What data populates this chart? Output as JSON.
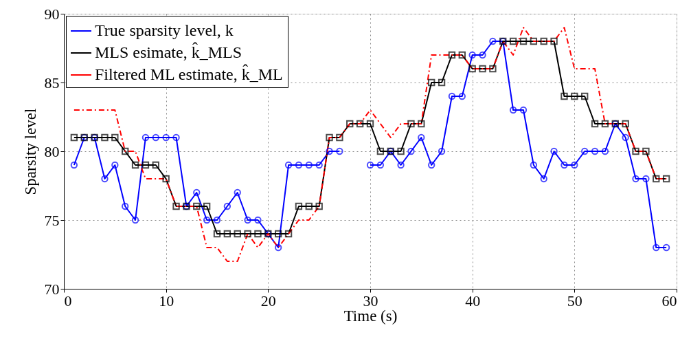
{
  "chart_data": {
    "type": "line",
    "xlabel": "Time (s)",
    "ylabel": "Sparsity level",
    "x": [
      1,
      2,
      3,
      4,
      5,
      6,
      7,
      8,
      9,
      10,
      11,
      12,
      13,
      14,
      15,
      16,
      17,
      18,
      19,
      20,
      21,
      22,
      23,
      24,
      25,
      26,
      27,
      28,
      29,
      30,
      31,
      32,
      33,
      34,
      35,
      36,
      37,
      38,
      39,
      40,
      41,
      42,
      43,
      44,
      45,
      46,
      47,
      48,
      49,
      50,
      51,
      52,
      53,
      54,
      55,
      56,
      57,
      58,
      59
    ],
    "series": [
      {
        "name": "True sparsity level, k",
        "color": "#0000ff",
        "marker": "circle",
        "line_style": "solid",
        "values": [
          79,
          81,
          81,
          78,
          79,
          76,
          75,
          81,
          81,
          81,
          81,
          76,
          77,
          75,
          75,
          76,
          77,
          75,
          75,
          74,
          73,
          79,
          79,
          79,
          79,
          80,
          80,
          null,
          null,
          79,
          79,
          80,
          79,
          80,
          81,
          79,
          80,
          84,
          84,
          87,
          87,
          88,
          88,
          83,
          83,
          79,
          78,
          80,
          79,
          79,
          80,
          80,
          80,
          82,
          81,
          78,
          78,
          73,
          73
        ]
      },
      {
        "name": "MLS esimate, k̂_MLS",
        "color": "#000000",
        "marker": "square",
        "line_style": "solid",
        "values": [
          81,
          81,
          81,
          81,
          81,
          80,
          79,
          79,
          79,
          78,
          76,
          76,
          76,
          76,
          74,
          74,
          74,
          74,
          74,
          74,
          74,
          74,
          76,
          76,
          76,
          81,
          81,
          82,
          82,
          82,
          80,
          80,
          80,
          82,
          82,
          85,
          85,
          87,
          87,
          86,
          86,
          86,
          88,
          88,
          88,
          88,
          88,
          88,
          84,
          84,
          84,
          82,
          82,
          82,
          82,
          80,
          80,
          78,
          78
        ]
      },
      {
        "name": "Filtered ML estimate, k̂_ML",
        "color": "#ff0000",
        "marker": "none",
        "line_style": "dashed",
        "values": [
          83,
          83,
          83,
          83,
          83,
          80,
          80,
          78,
          78,
          78,
          76,
          76,
          76,
          73,
          73,
          72,
          72,
          74,
          73,
          74,
          73,
          74,
          75,
          75,
          76,
          81,
          81,
          82,
          82,
          83,
          82,
          81,
          82,
          82,
          82,
          87,
          87,
          87,
          87,
          86,
          86,
          86,
          88,
          87,
          89,
          88,
          88,
          88,
          89,
          86,
          86,
          86,
          82,
          82,
          82,
          80,
          80,
          78,
          78
        ]
      }
    ],
    "xlim": [
      0,
      60
    ],
    "xticks": [
      0,
      10,
      20,
      30,
      40,
      50,
      60
    ],
    "ylim": [
      70,
      90
    ],
    "yticks": [
      70,
      75,
      80,
      85,
      90
    ],
    "grid": true,
    "legend": "top left"
  }
}
